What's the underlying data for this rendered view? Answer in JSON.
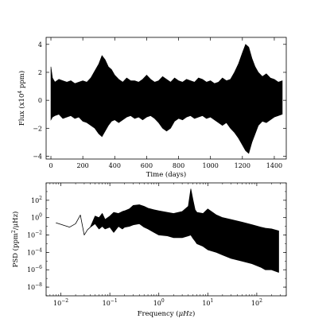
{
  "chart_data": [
    {
      "type": "line",
      "title": "",
      "xlabel": "Time (days)",
      "ylabel": "Flux (x10",
      "ylabel_sup": "4",
      "ylabel_end": " ppm)",
      "xlim": [
        -30,
        1475
      ],
      "ylim": [
        -4.2,
        4.5
      ],
      "xticks": [
        0,
        200,
        400,
        600,
        800,
        1000,
        1200,
        1400
      ],
      "yticks": [
        -4,
        -2,
        0,
        2,
        4
      ],
      "grid": false,
      "series": [
        {
          "x": [
            0,
            10,
            25,
            50,
            75,
            100,
            125,
            150,
            175,
            200,
            225,
            250,
            275,
            300,
            320,
            340,
            360,
            380,
            400,
            425,
            450,
            475,
            500,
            525,
            550,
            575,
            600,
            625,
            650,
            675,
            700,
            725,
            750,
            775,
            800,
            825,
            850,
            875,
            900,
            925,
            950,
            975,
            1000,
            1025,
            1050,
            1075,
            1100,
            1125,
            1150,
            1175,
            1200,
            1220,
            1240,
            1260,
            1280,
            1300,
            1325,
            1350,
            1375,
            1400,
            1425,
            1450
          ],
          "upper": [
            2.4,
            1.6,
            1.3,
            1.5,
            1.4,
            1.3,
            1.4,
            1.2,
            1.3,
            1.4,
            1.3,
            1.6,
            2.1,
            2.6,
            3.2,
            2.9,
            2.4,
            2.2,
            1.8,
            1.5,
            1.3,
            1.6,
            1.4,
            1.4,
            1.3,
            1.5,
            1.8,
            1.5,
            1.3,
            1.4,
            1.7,
            1.5,
            1.3,
            1.6,
            1.4,
            1.3,
            1.5,
            1.4,
            1.3,
            1.6,
            1.5,
            1.3,
            1.4,
            1.2,
            1.3,
            1.6,
            1.4,
            1.5,
            2.0,
            2.6,
            3.4,
            4.0,
            3.8,
            3.0,
            2.4,
            2.0,
            1.7,
            1.9,
            1.6,
            1.5,
            1.3,
            1.4
          ],
          "lower": [
            -1.4,
            -1.2,
            -1.1,
            -1.0,
            -1.3,
            -1.2,
            -1.1,
            -1.3,
            -1.2,
            -1.5,
            -1.6,
            -1.8,
            -2.0,
            -2.4,
            -2.6,
            -2.2,
            -1.8,
            -1.5,
            -1.4,
            -1.6,
            -1.4,
            -1.2,
            -1.1,
            -1.3,
            -1.2,
            -1.4,
            -1.2,
            -1.1,
            -1.3,
            -1.6,
            -2.0,
            -2.2,
            -2.0,
            -1.5,
            -1.3,
            -1.4,
            -1.2,
            -1.1,
            -1.3,
            -1.2,
            -1.1,
            -1.3,
            -1.2,
            -1.4,
            -1.6,
            -1.8,
            -1.6,
            -2.0,
            -2.3,
            -2.7,
            -3.2,
            -3.6,
            -3.8,
            -3.0,
            -2.4,
            -1.8,
            -1.5,
            -1.6,
            -1.4,
            -1.2,
            -1.1,
            -1.0
          ]
        }
      ]
    },
    {
      "type": "line",
      "title": "",
      "xlabel": "Frequency (",
      "xlabel_unit": "μHz",
      "xlabel_end": ")",
      "ylabel": "PSD (ppm",
      "ylabel_sup": "2",
      "ylabel_end": "/μHz)",
      "xscale": "log",
      "yscale": "log",
      "xlim": [
        0.005,
        400
      ],
      "ylim": [
        1e-09,
        10000.0
      ],
      "xticks": [
        0.01,
        0.1,
        1,
        10,
        100
      ],
      "xtick_exponents": [
        "-2",
        "-1",
        "0",
        "1",
        "2"
      ],
      "yticks": [
        1e-08,
        1e-06,
        0.0001,
        0.01,
        1,
        100
      ],
      "ytick_exponents": [
        "-8",
        "-6",
        "-4",
        "-2",
        "0",
        "2"
      ],
      "grid": false,
      "series": [
        {
          "x": [
            0.008,
            0.015,
            0.02,
            0.025,
            0.03,
            0.035,
            0.04,
            0.05,
            0.06,
            0.07,
            0.08,
            0.1,
            0.12,
            0.15,
            0.18,
            0.2,
            0.25,
            0.3,
            0.4,
            0.5,
            0.6,
            0.8,
            1.0,
            1.5,
            2.0,
            3.0,
            4.0,
            4.5,
            5.0,
            5.5,
            6.0,
            8.0,
            10.0,
            15.0,
            20.0,
            30.0,
            50.0,
            80.0,
            120.0,
            150.0,
            200.0,
            280.0
          ],
          "upper": [
            0.25,
            0.08,
            0.2,
            2.0,
            0.01,
            0.04,
            0.08,
            1.5,
            1.0,
            3.0,
            0.6,
            1.5,
            4.0,
            3.0,
            5.0,
            6.0,
            10.0,
            25.0,
            30.0,
            20.0,
            12.0,
            8.0,
            6.0,
            4.0,
            3.0,
            5.0,
            20.0,
            2000.0,
            100.0,
            8.0,
            4.0,
            3.0,
            10.0,
            2.0,
            1.0,
            0.6,
            0.3,
            0.15,
            0.08,
            0.06,
            0.05,
            0.03
          ],
          "lower": [
            0.25,
            0.08,
            0.2,
            2.0,
            0.01,
            0.04,
            0.08,
            0.2,
            0.05,
            0.1,
            0.05,
            0.08,
            0.02,
            0.1,
            0.05,
            0.08,
            0.1,
            0.15,
            0.2,
            0.08,
            0.05,
            0.02,
            0.01,
            0.008,
            0.005,
            0.005,
            0.008,
            0.01,
            0.004,
            0.002,
            0.001,
            0.0005,
            0.0002,
            0.0001,
            5e-05,
            2e-05,
            1e-05,
            5e-06,
            2e-06,
            1e-06,
            1e-06,
            5e-07
          ]
        }
      ]
    }
  ]
}
